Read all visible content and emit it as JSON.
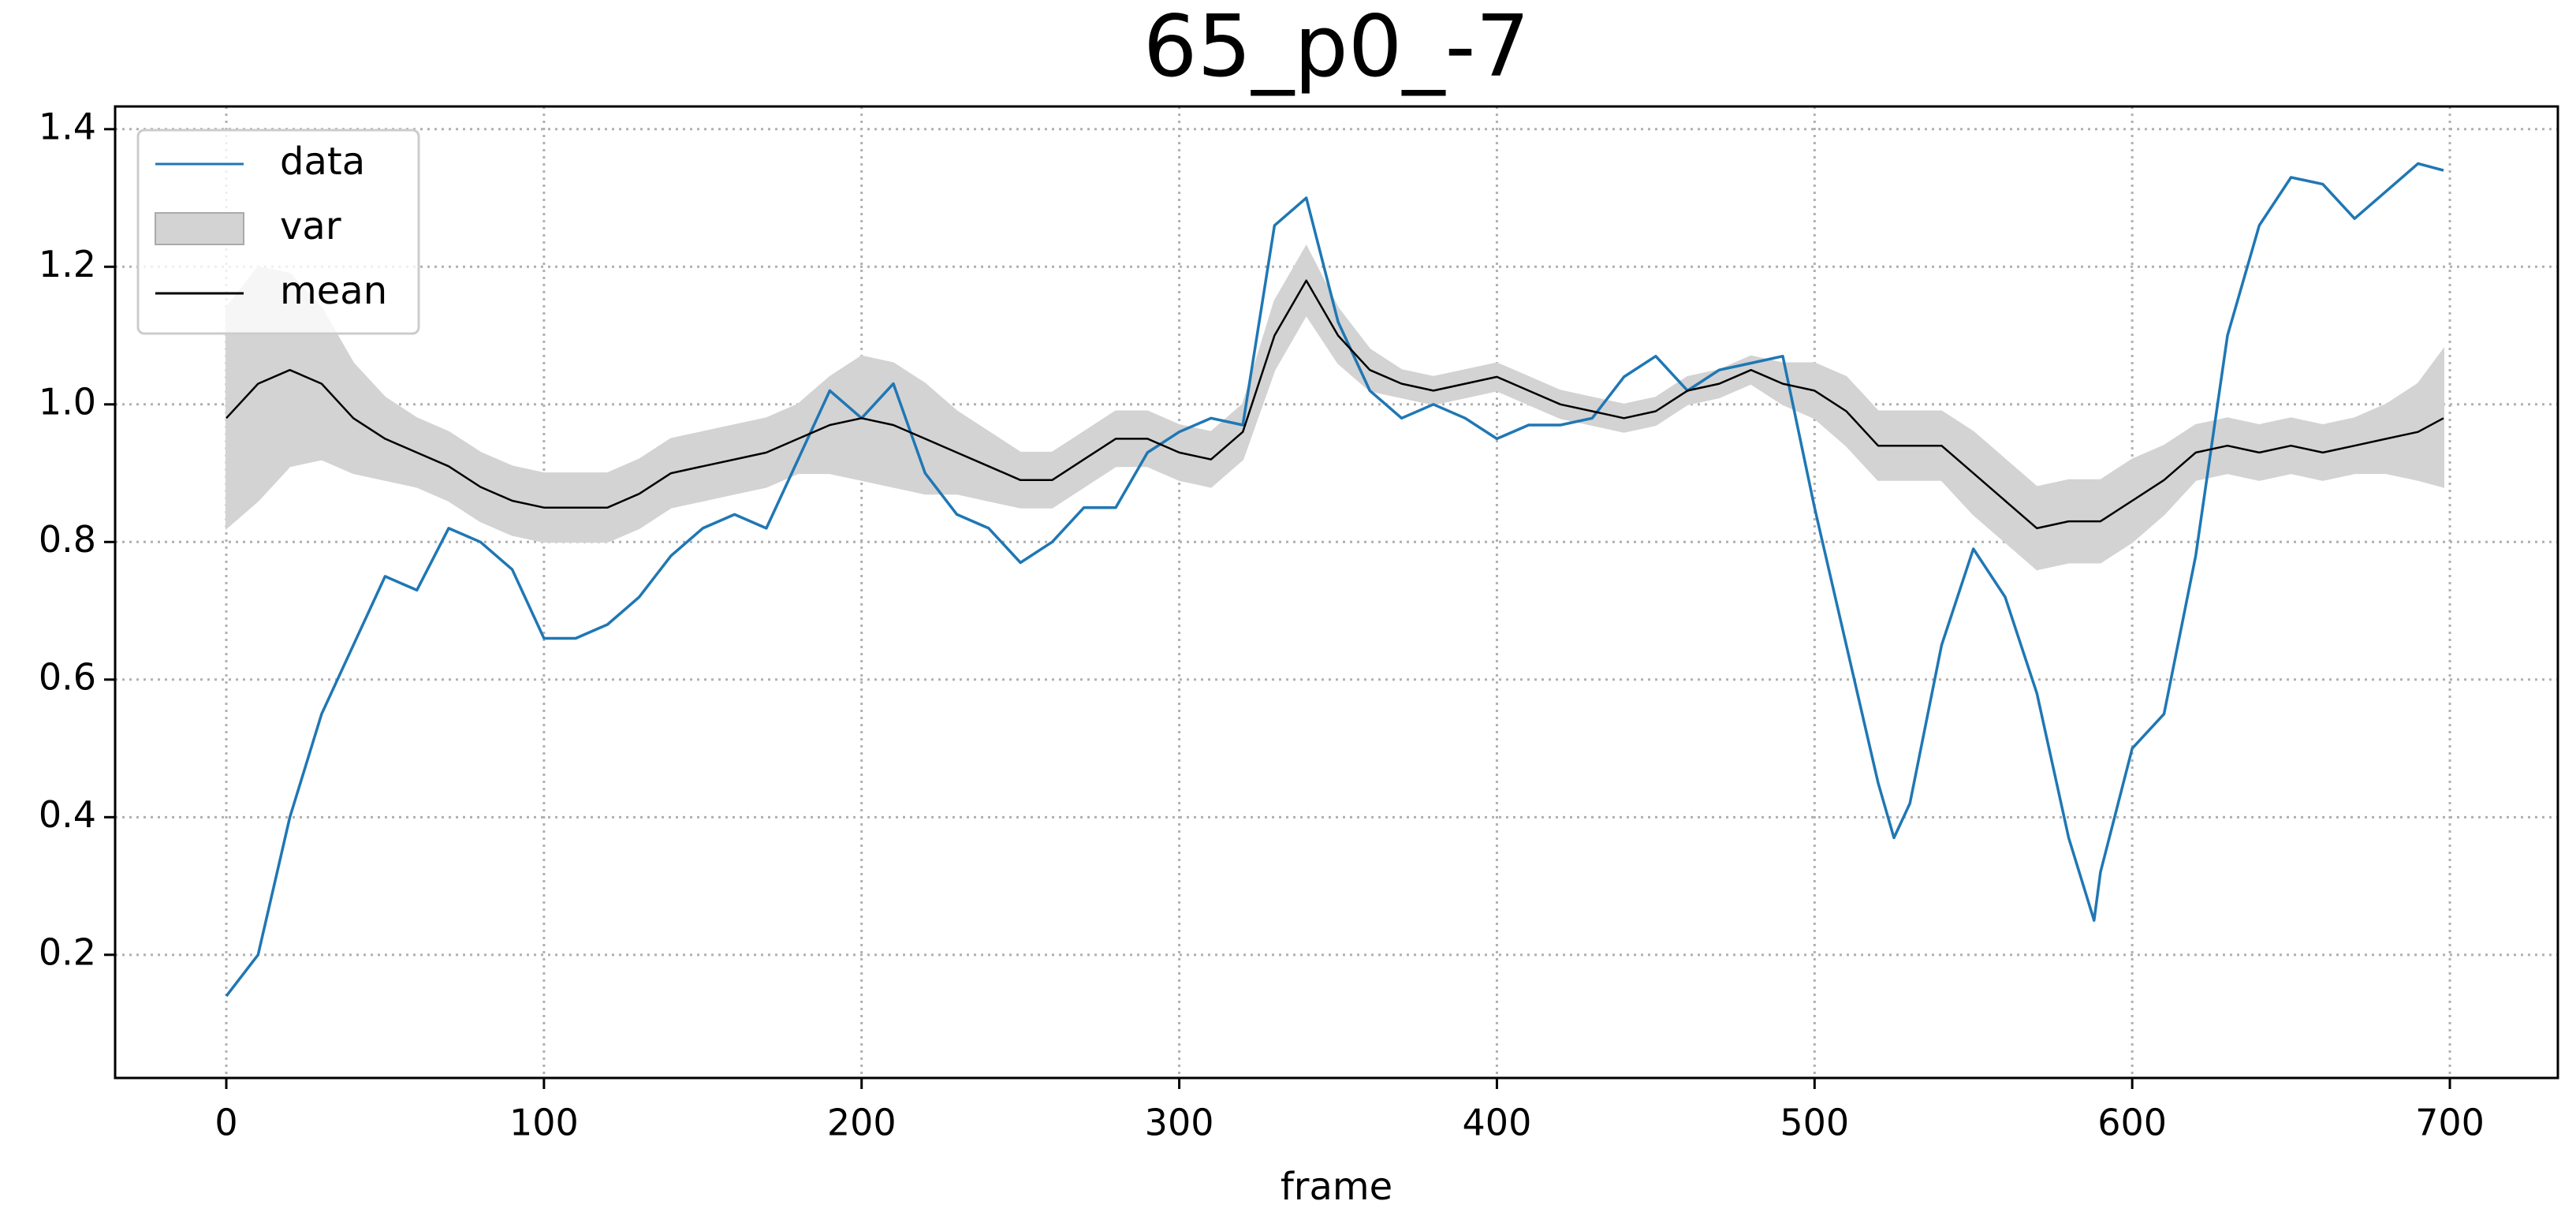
{
  "chart_data": {
    "type": "line",
    "title": "65_p0_-7",
    "xlabel": "frame",
    "x": [
      0,
      10,
      20,
      30,
      40,
      50,
      60,
      70,
      80,
      90,
      100,
      110,
      120,
      130,
      140,
      150,
      160,
      170,
      180,
      190,
      200,
      210,
      220,
      230,
      240,
      250,
      260,
      270,
      280,
      290,
      300,
      310,
      320,
      330,
      340,
      350,
      360,
      370,
      380,
      390,
      400,
      410,
      420,
      430,
      440,
      450,
      460,
      470,
      480,
      490,
      500,
      510,
      520,
      525,
      530,
      540,
      550,
      560,
      570,
      580,
      588,
      590,
      600,
      610,
      620,
      630,
      640,
      650,
      660,
      670,
      680,
      690,
      698
    ],
    "series": [
      {
        "name": "data",
        "color": "#1f77b4",
        "values": [
          0.14,
          0.2,
          0.4,
          0.55,
          0.65,
          0.75,
          0.73,
          0.82,
          0.8,
          0.76,
          0.66,
          0.66,
          0.68,
          0.72,
          0.78,
          0.82,
          0.84,
          0.82,
          0.92,
          1.02,
          0.98,
          1.03,
          0.9,
          0.84,
          0.82,
          0.77,
          0.8,
          0.85,
          0.85,
          0.93,
          0.96,
          0.98,
          0.97,
          1.26,
          1.3,
          1.12,
          1.02,
          0.98,
          1.0,
          0.98,
          0.95,
          0.97,
          0.97,
          0.98,
          1.04,
          1.07,
          1.02,
          1.05,
          1.06,
          1.07,
          0.85,
          0.65,
          0.45,
          0.37,
          0.42,
          0.65,
          0.79,
          0.72,
          0.58,
          0.37,
          0.25,
          0.32,
          0.5,
          0.55,
          0.78,
          1.1,
          1.26,
          1.33,
          1.32,
          1.27,
          1.31,
          1.35,
          1.34
        ]
      },
      {
        "name": "var",
        "color": "#d3d3d3",
        "upper": [
          1.14,
          1.2,
          1.19,
          1.14,
          1.06,
          1.01,
          0.98,
          0.96,
          0.93,
          0.91,
          0.9,
          0.9,
          0.9,
          0.92,
          0.95,
          0.96,
          0.97,
          0.98,
          1.0,
          1.04,
          1.07,
          1.06,
          1.03,
          0.99,
          0.96,
          0.93,
          0.93,
          0.96,
          0.99,
          0.99,
          0.97,
          0.96,
          1.0,
          1.15,
          1.23,
          1.14,
          1.08,
          1.05,
          1.04,
          1.05,
          1.06,
          1.04,
          1.02,
          1.01,
          1.0,
          1.01,
          1.04,
          1.05,
          1.07,
          1.06,
          1.06,
          1.04,
          0.99,
          0.99,
          0.99,
          0.99,
          0.96,
          0.92,
          0.88,
          0.89,
          0.89,
          0.89,
          0.92,
          0.94,
          0.97,
          0.98,
          0.97,
          0.98,
          0.97,
          0.98,
          1.0,
          1.03,
          1.08
        ],
        "lower": [
          0.82,
          0.86,
          0.91,
          0.92,
          0.9,
          0.89,
          0.88,
          0.86,
          0.83,
          0.81,
          0.8,
          0.8,
          0.8,
          0.82,
          0.85,
          0.86,
          0.87,
          0.88,
          0.9,
          0.9,
          0.89,
          0.88,
          0.87,
          0.87,
          0.86,
          0.85,
          0.85,
          0.88,
          0.91,
          0.91,
          0.89,
          0.88,
          0.92,
          1.05,
          1.13,
          1.06,
          1.02,
          1.01,
          1.0,
          1.01,
          1.02,
          1.0,
          0.98,
          0.97,
          0.96,
          0.97,
          1.0,
          1.01,
          1.03,
          1.0,
          0.98,
          0.94,
          0.89,
          0.89,
          0.89,
          0.89,
          0.84,
          0.8,
          0.76,
          0.77,
          0.77,
          0.77,
          0.8,
          0.84,
          0.89,
          0.9,
          0.89,
          0.9,
          0.89,
          0.9,
          0.9,
          0.89,
          0.88
        ]
      },
      {
        "name": "mean",
        "color": "#000000",
        "values": [
          0.98,
          1.03,
          1.05,
          1.03,
          0.98,
          0.95,
          0.93,
          0.91,
          0.88,
          0.86,
          0.85,
          0.85,
          0.85,
          0.87,
          0.9,
          0.91,
          0.92,
          0.93,
          0.95,
          0.97,
          0.98,
          0.97,
          0.95,
          0.93,
          0.91,
          0.89,
          0.89,
          0.92,
          0.95,
          0.95,
          0.93,
          0.92,
          0.96,
          1.1,
          1.18,
          1.1,
          1.05,
          1.03,
          1.02,
          1.03,
          1.04,
          1.02,
          1.0,
          0.99,
          0.98,
          0.99,
          1.02,
          1.03,
          1.05,
          1.03,
          1.02,
          0.99,
          0.94,
          0.94,
          0.94,
          0.94,
          0.9,
          0.86,
          0.82,
          0.83,
          0.83,
          0.83,
          0.86,
          0.89,
          0.93,
          0.94,
          0.93,
          0.94,
          0.93,
          0.94,
          0.95,
          0.96,
          0.98
        ]
      }
    ],
    "xlim": [
      -35,
      734
    ],
    "ylim": [
      0.021,
      1.433
    ],
    "xticks": [
      0,
      100,
      200,
      300,
      400,
      500,
      600,
      700
    ],
    "yticks": [
      0.2,
      0.4,
      0.6,
      0.8,
      {
        "value": 1,
        "label": "1.0"
      },
      1.2,
      1.4
    ],
    "grid": true,
    "legend": "upper left"
  }
}
